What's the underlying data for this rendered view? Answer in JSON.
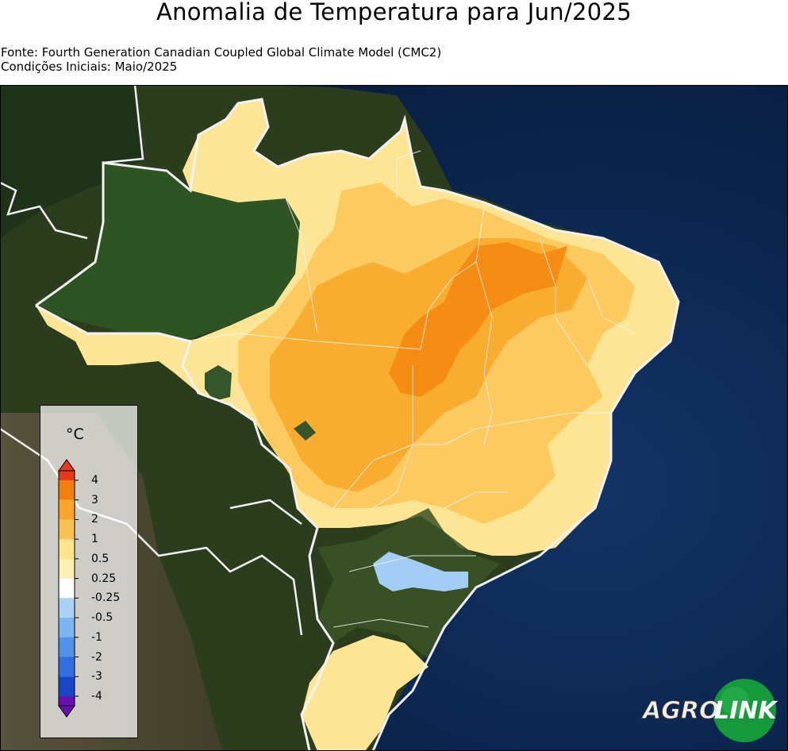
{
  "header": {
    "title": "Anomalia de Temperatura para Jun/2025",
    "source": "Fonte: Fourth Generation Canadian Coupled Global Climate Model (CMC2)",
    "initial_conditions": "Condições Iniciais: Maio/2025"
  },
  "legend": {
    "unit": "°C",
    "ticks": [
      "4",
      "3",
      "2",
      "1",
      "0.5",
      "0.25",
      "-0.25",
      "-0.5",
      "-1",
      "-2",
      "-3",
      "-4"
    ],
    "colors": [
      "#e8391c",
      "#f27f0c",
      "#f9a52a",
      "#fcc150",
      "#fce38c",
      "#fdf1b2",
      "#ffffff",
      "#a8d2f7",
      "#7db5f2",
      "#4f93ea",
      "#2f6fe0",
      "#1846c8",
      "#6a0fb0"
    ]
  },
  "map": {
    "ocean_color": "#0b2145",
    "land_color": "#3b4a25",
    "forest_color": "#2a4a1e",
    "border_color": "#f0f0f0"
  },
  "logo": {
    "text_left": "AGRO",
    "text_right": "LINK",
    "green": "#149a3a"
  }
}
